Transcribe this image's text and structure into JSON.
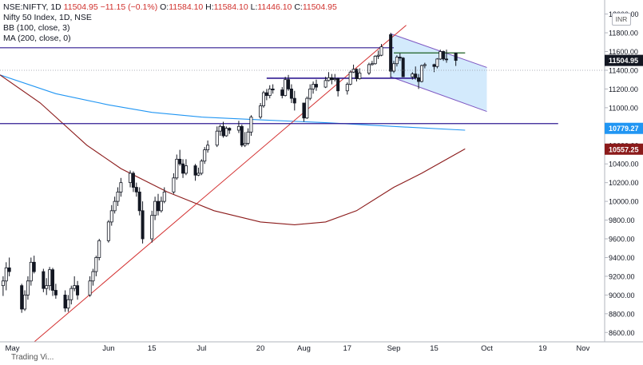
{
  "header": {
    "symbol": "NSE:NIFTY, 1D",
    "last": "11504.95",
    "change": "−11.15 (−0.1%)",
    "o_label": "O:",
    "o_value": "11584.10",
    "h_label": "H:",
    "h_value": "11584.10",
    "l_label": "L:",
    "l_value": "11446.10",
    "c_label": "C:",
    "c_value": "11504.95"
  },
  "legend": [
    "Nifty 50 Index, 1D, NSE",
    "BB (100, close, 3)",
    "MA (200, close, 0)"
  ],
  "currency": "INR",
  "bottom_label": "Trading Vi...",
  "colors": {
    "up": "#ffffff",
    "down": "#131722",
    "wick": "#131722",
    "ma": "#8b1a1a",
    "bb_basis": "#2196f3",
    "trend": "#d32f2f",
    "hline": "#311b92",
    "channel_fill": "#bbdefb",
    "channel_edge": "#7e57c2",
    "last_label": "#131722",
    "ma_label": "#8b1a1a",
    "bb_label": "#2196f3"
  },
  "chart_data": {
    "type": "candlestick",
    "y_axis": {
      "min": 8500,
      "max": 12150,
      "ticks": [
        8600,
        8800,
        9000,
        9200,
        9400,
        9600,
        9800,
        10000,
        10200,
        10400,
        10600,
        10800,
        11000,
        11200,
        11400,
        11600,
        11800,
        12000
      ],
      "tick_labels": [
        "8600.00",
        "8800.00",
        "9000.00",
        "9200.00",
        "9400.00",
        "9600.00",
        "9800.00",
        "10000.00",
        "10200.00",
        "10400.00",
        "10600.00",
        "10800.00",
        "11000.00",
        "11200.00",
        "11400.00",
        "11600.00",
        "11800.00",
        "12000.00"
      ]
    },
    "x_axis": {
      "start_date": "2020-04-27",
      "end_date": "2020-11-08",
      "ticks": [
        {
          "date": "2020-05-01",
          "label": "May"
        },
        {
          "date": "2020-06-01",
          "label": "Jun"
        },
        {
          "date": "2020-06-15",
          "label": "15"
        },
        {
          "date": "2020-07-01",
          "label": "Jul"
        },
        {
          "date": "2020-07-20",
          "label": "20"
        },
        {
          "date": "2020-08-03",
          "label": "Aug"
        },
        {
          "date": "2020-08-17",
          "label": "17"
        },
        {
          "date": "2020-09-01",
          "label": "Sep"
        },
        {
          "date": "2020-09-14",
          "label": "15"
        },
        {
          "date": "2020-10-01",
          "label": "Oct"
        },
        {
          "date": "2020-10-19",
          "label": "19"
        },
        {
          "date": "2020-11-01",
          "label": "Nov"
        }
      ]
    },
    "price_labels": [
      {
        "value": 11504.95,
        "text": "11504.95",
        "kind": "last"
      },
      {
        "value": 10779.27,
        "text": "10779.27",
        "kind": "bb"
      },
      {
        "value": 10557.25,
        "text": "10557.25",
        "kind": "ma"
      }
    ],
    "candles": [
      {
        "d": "2020-04-28",
        "o": 9100,
        "h": 9200,
        "l": 8990,
        "c": 9150
      },
      {
        "d": "2020-04-29",
        "o": 9150,
        "h": 9350,
        "l": 9050,
        "c": 9290
      },
      {
        "d": "2020-04-30",
        "o": 9290,
        "h": 9400,
        "l": 9200,
        "c": 9250
      },
      {
        "d": "2020-05-04",
        "o": 9100,
        "h": 9120,
        "l": 8810,
        "c": 8850
      },
      {
        "d": "2020-05-05",
        "o": 8850,
        "h": 9050,
        "l": 8830,
        "c": 9000
      },
      {
        "d": "2020-05-06",
        "o": 9000,
        "h": 9200,
        "l": 8950,
        "c": 9150
      },
      {
        "d": "2020-05-07",
        "o": 9150,
        "h": 9400,
        "l": 9100,
        "c": 9350
      },
      {
        "d": "2020-05-08",
        "o": 9350,
        "h": 9420,
        "l": 9230,
        "c": 9250
      },
      {
        "d": "2020-05-11",
        "o": 9250,
        "h": 9280,
        "l": 9030,
        "c": 9070
      },
      {
        "d": "2020-05-12",
        "o": 9070,
        "h": 9180,
        "l": 9000,
        "c": 9100
      },
      {
        "d": "2020-05-13",
        "o": 9100,
        "h": 9300,
        "l": 9050,
        "c": 9270
      },
      {
        "d": "2020-05-14",
        "o": 9270,
        "h": 9290,
        "l": 8990,
        "c": 9050
      },
      {
        "d": "2020-05-15",
        "o": 9050,
        "h": 9120,
        "l": 8960,
        "c": 9000
      },
      {
        "d": "2020-05-18",
        "o": 9000,
        "h": 9050,
        "l": 8820,
        "c": 8860
      },
      {
        "d": "2020-05-19",
        "o": 8860,
        "h": 9000,
        "l": 8820,
        "c": 8950
      },
      {
        "d": "2020-05-20",
        "o": 8950,
        "h": 9100,
        "l": 8900,
        "c": 9070
      },
      {
        "d": "2020-05-21",
        "o": 9070,
        "h": 9200,
        "l": 9040,
        "c": 9100
      },
      {
        "d": "2020-05-22",
        "o": 9100,
        "h": 9150,
        "l": 8950,
        "c": 9000
      },
      {
        "d": "2020-05-26",
        "o": 9000,
        "h": 9200,
        "l": 8980,
        "c": 9150
      },
      {
        "d": "2020-05-27",
        "o": 9150,
        "h": 9280,
        "l": 9100,
        "c": 9250
      },
      {
        "d": "2020-05-28",
        "o": 9250,
        "h": 9420,
        "l": 9200,
        "c": 9400
      },
      {
        "d": "2020-05-29",
        "o": 9400,
        "h": 9600,
        "l": 9370,
        "c": 9580
      },
      {
        "d": "2020-06-01",
        "o": 9580,
        "h": 9800,
        "l": 9560,
        "c": 9780
      },
      {
        "d": "2020-06-02",
        "o": 9780,
        "h": 9960,
        "l": 9740,
        "c": 9900
      },
      {
        "d": "2020-06-03",
        "o": 9900,
        "h": 10050,
        "l": 9870,
        "c": 10000
      },
      {
        "d": "2020-06-04",
        "o": 10000,
        "h": 10150,
        "l": 9950,
        "c": 10100
      },
      {
        "d": "2020-06-05",
        "o": 10100,
        "h": 10250,
        "l": 10050,
        "c": 10200
      },
      {
        "d": "2020-06-08",
        "o": 10200,
        "h": 10330,
        "l": 10150,
        "c": 10300
      },
      {
        "d": "2020-06-09",
        "o": 10300,
        "h": 10320,
        "l": 10100,
        "c": 10150
      },
      {
        "d": "2020-06-10",
        "o": 10150,
        "h": 10200,
        "l": 10050,
        "c": 10100
      },
      {
        "d": "2020-06-11",
        "o": 10100,
        "h": 10150,
        "l": 9850,
        "c": 9900
      },
      {
        "d": "2020-06-12",
        "o": 9900,
        "h": 10000,
        "l": 9550,
        "c": 9600
      },
      {
        "d": "2020-06-15",
        "o": 9600,
        "h": 9900,
        "l": 9560,
        "c": 9850
      },
      {
        "d": "2020-06-16",
        "o": 9850,
        "h": 10050,
        "l": 9800,
        "c": 10000
      },
      {
        "d": "2020-06-17",
        "o": 10000,
        "h": 10080,
        "l": 9850,
        "c": 9900
      },
      {
        "d": "2020-06-18",
        "o": 9900,
        "h": 10050,
        "l": 9880,
        "c": 10000
      },
      {
        "d": "2020-06-19",
        "o": 10000,
        "h": 10150,
        "l": 9980,
        "c": 10100
      },
      {
        "d": "2020-06-22",
        "o": 10100,
        "h": 10300,
        "l": 10080,
        "c": 10250
      },
      {
        "d": "2020-06-23",
        "o": 10250,
        "h": 10500,
        "l": 10230,
        "c": 10450
      },
      {
        "d": "2020-06-24",
        "o": 10450,
        "h": 10550,
        "l": 10380,
        "c": 10400
      },
      {
        "d": "2020-06-25",
        "o": 10400,
        "h": 10450,
        "l": 10250,
        "c": 10300
      },
      {
        "d": "2020-06-26",
        "o": 10300,
        "h": 10450,
        "l": 10280,
        "c": 10380
      },
      {
        "d": "2020-06-29",
        "o": 10380,
        "h": 10400,
        "l": 10220,
        "c": 10280
      },
      {
        "d": "2020-06-30",
        "o": 10280,
        "h": 10360,
        "l": 10270,
        "c": 10300
      },
      {
        "d": "2020-07-01",
        "o": 10300,
        "h": 10450,
        "l": 10280,
        "c": 10430
      },
      {
        "d": "2020-07-02",
        "o": 10430,
        "h": 10580,
        "l": 10400,
        "c": 10550
      },
      {
        "d": "2020-07-03",
        "o": 10550,
        "h": 10650,
        "l": 10520,
        "c": 10600
      },
      {
        "d": "2020-07-06",
        "o": 10600,
        "h": 10800,
        "l": 10580,
        "c": 10750
      },
      {
        "d": "2020-07-07",
        "o": 10750,
        "h": 10820,
        "l": 10700,
        "c": 10800
      },
      {
        "d": "2020-07-08",
        "o": 10800,
        "h": 10850,
        "l": 10680,
        "c": 10700
      },
      {
        "d": "2020-07-09",
        "o": 10700,
        "h": 10800,
        "l": 10690,
        "c": 10780
      },
      {
        "d": "2020-07-10",
        "o": 10780,
        "h": 10790,
        "l": 10720,
        "c": 10760
      },
      {
        "d": "2020-07-13",
        "o": 10760,
        "h": 10860,
        "l": 10730,
        "c": 10800
      },
      {
        "d": "2020-07-14",
        "o": 10800,
        "h": 10820,
        "l": 10580,
        "c": 10600
      },
      {
        "d": "2020-07-15",
        "o": 10600,
        "h": 10740,
        "l": 10580,
        "c": 10620
      },
      {
        "d": "2020-07-16",
        "o": 10620,
        "h": 10780,
        "l": 10600,
        "c": 10740
      },
      {
        "d": "2020-07-17",
        "o": 10740,
        "h": 10920,
        "l": 10700,
        "c": 10900
      },
      {
        "d": "2020-07-20",
        "o": 10900,
        "h": 11050,
        "l": 10880,
        "c": 11020
      },
      {
        "d": "2020-07-21",
        "o": 11020,
        "h": 11180,
        "l": 11000,
        "c": 11160
      },
      {
        "d": "2020-07-22",
        "o": 11160,
        "h": 11200,
        "l": 11080,
        "c": 11130
      },
      {
        "d": "2020-07-23",
        "o": 11130,
        "h": 11240,
        "l": 11100,
        "c": 11200
      },
      {
        "d": "2020-07-24",
        "o": 11200,
        "h": 11250,
        "l": 11150,
        "c": 11190
      },
      {
        "d": "2020-07-27",
        "o": 11190,
        "h": 11220,
        "l": 11100,
        "c": 11130
      },
      {
        "d": "2020-07-28",
        "o": 11130,
        "h": 11330,
        "l": 11120,
        "c": 11300
      },
      {
        "d": "2020-07-29",
        "o": 11300,
        "h": 11350,
        "l": 11180,
        "c": 11200
      },
      {
        "d": "2020-07-30",
        "o": 11200,
        "h": 11250,
        "l": 11050,
        "c": 11100
      },
      {
        "d": "2020-07-31",
        "o": 11100,
        "h": 11180,
        "l": 10970,
        "c": 11050
      },
      {
        "d": "2020-08-03",
        "o": 11050,
        "h": 11050,
        "l": 10850,
        "c": 10890
      },
      {
        "d": "2020-08-04",
        "o": 10890,
        "h": 11120,
        "l": 10880,
        "c": 11100
      },
      {
        "d": "2020-08-05",
        "o": 11100,
        "h": 11250,
        "l": 11080,
        "c": 11200
      },
      {
        "d": "2020-08-06",
        "o": 11200,
        "h": 11280,
        "l": 11150,
        "c": 11250
      },
      {
        "d": "2020-08-07",
        "o": 11250,
        "h": 11300,
        "l": 11180,
        "c": 11220
      },
      {
        "d": "2020-08-10",
        "o": 11220,
        "h": 11330,
        "l": 11210,
        "c": 11290
      },
      {
        "d": "2020-08-11",
        "o": 11290,
        "h": 11380,
        "l": 11280,
        "c": 11320
      },
      {
        "d": "2020-08-12",
        "o": 11320,
        "h": 11360,
        "l": 11250,
        "c": 11300
      },
      {
        "d": "2020-08-13",
        "o": 11300,
        "h": 11360,
        "l": 11280,
        "c": 11310
      },
      {
        "d": "2020-08-14",
        "o": 11310,
        "h": 11320,
        "l": 11120,
        "c": 11180
      },
      {
        "d": "2020-08-17",
        "o": 11180,
        "h": 11270,
        "l": 11140,
        "c": 11250
      },
      {
        "d": "2020-08-18",
        "o": 11250,
        "h": 11400,
        "l": 11240,
        "c": 11380
      },
      {
        "d": "2020-08-19",
        "o": 11380,
        "h": 11460,
        "l": 11370,
        "c": 11410
      },
      {
        "d": "2020-08-20",
        "o": 11410,
        "h": 11420,
        "l": 11280,
        "c": 11310
      },
      {
        "d": "2020-08-21",
        "o": 11310,
        "h": 11420,
        "l": 11300,
        "c": 11370
      },
      {
        "d": "2020-08-24",
        "o": 11370,
        "h": 11480,
        "l": 11350,
        "c": 11460
      },
      {
        "d": "2020-08-25",
        "o": 11460,
        "h": 11500,
        "l": 11450,
        "c": 11470
      },
      {
        "d": "2020-08-26",
        "o": 11470,
        "h": 11560,
        "l": 11460,
        "c": 11550
      },
      {
        "d": "2020-08-27",
        "o": 11550,
        "h": 11610,
        "l": 11520,
        "c": 11560
      },
      {
        "d": "2020-08-28",
        "o": 11560,
        "h": 11680,
        "l": 11550,
        "c": 11650
      },
      {
        "d": "2020-08-31",
        "o": 11780,
        "h": 11800,
        "l": 11320,
        "c": 11390
      },
      {
        "d": "2020-09-01",
        "o": 11390,
        "h": 11500,
        "l": 11370,
        "c": 11470
      },
      {
        "d": "2020-09-02",
        "o": 11470,
        "h": 11560,
        "l": 11440,
        "c": 11540
      },
      {
        "d": "2020-09-03",
        "o": 11540,
        "h": 11580,
        "l": 11500,
        "c": 11530
      },
      {
        "d": "2020-09-04",
        "o": 11530,
        "h": 11540,
        "l": 11330,
        "c": 11330
      },
      {
        "d": "2020-09-07",
        "o": 11330,
        "h": 11380,
        "l": 11300,
        "c": 11360
      },
      {
        "d": "2020-09-08",
        "o": 11360,
        "h": 11440,
        "l": 11300,
        "c": 11320
      },
      {
        "d": "2020-09-09",
        "o": 11320,
        "h": 11360,
        "l": 11200,
        "c": 11280
      },
      {
        "d": "2020-09-10",
        "o": 11280,
        "h": 11460,
        "l": 11270,
        "c": 11450
      },
      {
        "d": "2020-09-11",
        "o": 11450,
        "h": 11480,
        "l": 11420,
        "c": 11460
      },
      {
        "d": "2020-09-14",
        "o": 11460,
        "h": 11470,
        "l": 11380,
        "c": 11440
      },
      {
        "d": "2020-09-15",
        "o": 11440,
        "h": 11530,
        "l": 11420,
        "c": 11520
      },
      {
        "d": "2020-09-16",
        "o": 11520,
        "h": 11620,
        "l": 11510,
        "c": 11600
      },
      {
        "d": "2020-09-17",
        "o": 11600,
        "h": 11610,
        "l": 11500,
        "c": 11520
      },
      {
        "d": "2020-09-18",
        "o": 11520,
        "h": 11620,
        "l": 11480,
        "c": 11515
      },
      {
        "d": "2020-09-21",
        "o": 11584,
        "h": 11584,
        "l": 11446,
        "c": 11505
      }
    ],
    "bb_basis": [
      {
        "d": "2020-04-27",
        "v": 11350
      },
      {
        "d": "2020-05-15",
        "v": 11150
      },
      {
        "d": "2020-06-01",
        "v": 11030
      },
      {
        "d": "2020-06-15",
        "v": 10950
      },
      {
        "d": "2020-07-01",
        "v": 10900
      },
      {
        "d": "2020-07-20",
        "v": 10870
      },
      {
        "d": "2020-08-10",
        "v": 10840
      },
      {
        "d": "2020-09-01",
        "v": 10800
      },
      {
        "d": "2020-09-24",
        "v": 10760
      }
    ],
    "ma200": [
      {
        "d": "2020-04-27",
        "v": 11350
      },
      {
        "d": "2020-05-10",
        "v": 11050
      },
      {
        "d": "2020-05-25",
        "v": 10600
      },
      {
        "d": "2020-06-05",
        "v": 10350
      },
      {
        "d": "2020-06-20",
        "v": 10100
      },
      {
        "d": "2020-07-05",
        "v": 9900
      },
      {
        "d": "2020-07-20",
        "v": 9780
      },
      {
        "d": "2020-07-31",
        "v": 9750
      },
      {
        "d": "2020-08-10",
        "v": 9780
      },
      {
        "d": "2020-08-20",
        "v": 9900
      },
      {
        "d": "2020-09-01",
        "v": 10150
      },
      {
        "d": "2020-09-10",
        "v": 10300
      },
      {
        "d": "2020-09-24",
        "v": 10560
      }
    ],
    "trendline": {
      "d1": "2020-05-07",
      "v1": 8470,
      "d2": "2020-09-05",
      "v2": 11880
    },
    "hlines": [
      {
        "d1": "2020-04-27",
        "d2": "2020-09-01",
        "v": 11640
      },
      {
        "d1": "2020-04-27",
        "d2": "2020-10-24",
        "v": 10830
      },
      {
        "d1": "2020-07-22",
        "d2": "2020-09-08",
        "v": 11315
      },
      {
        "d1": "2020-09-01",
        "d2": "2020-09-24",
        "v": 11585
      }
    ],
    "channel": {
      "upper": [
        {
          "d": "2020-08-31",
          "v": 11790
        },
        {
          "d": "2020-10-01",
          "v": 11430
        }
      ],
      "lower": [
        {
          "d": "2020-08-31",
          "v": 11330
        },
        {
          "d": "2020-10-01",
          "v": 10960
        }
      ]
    }
  }
}
